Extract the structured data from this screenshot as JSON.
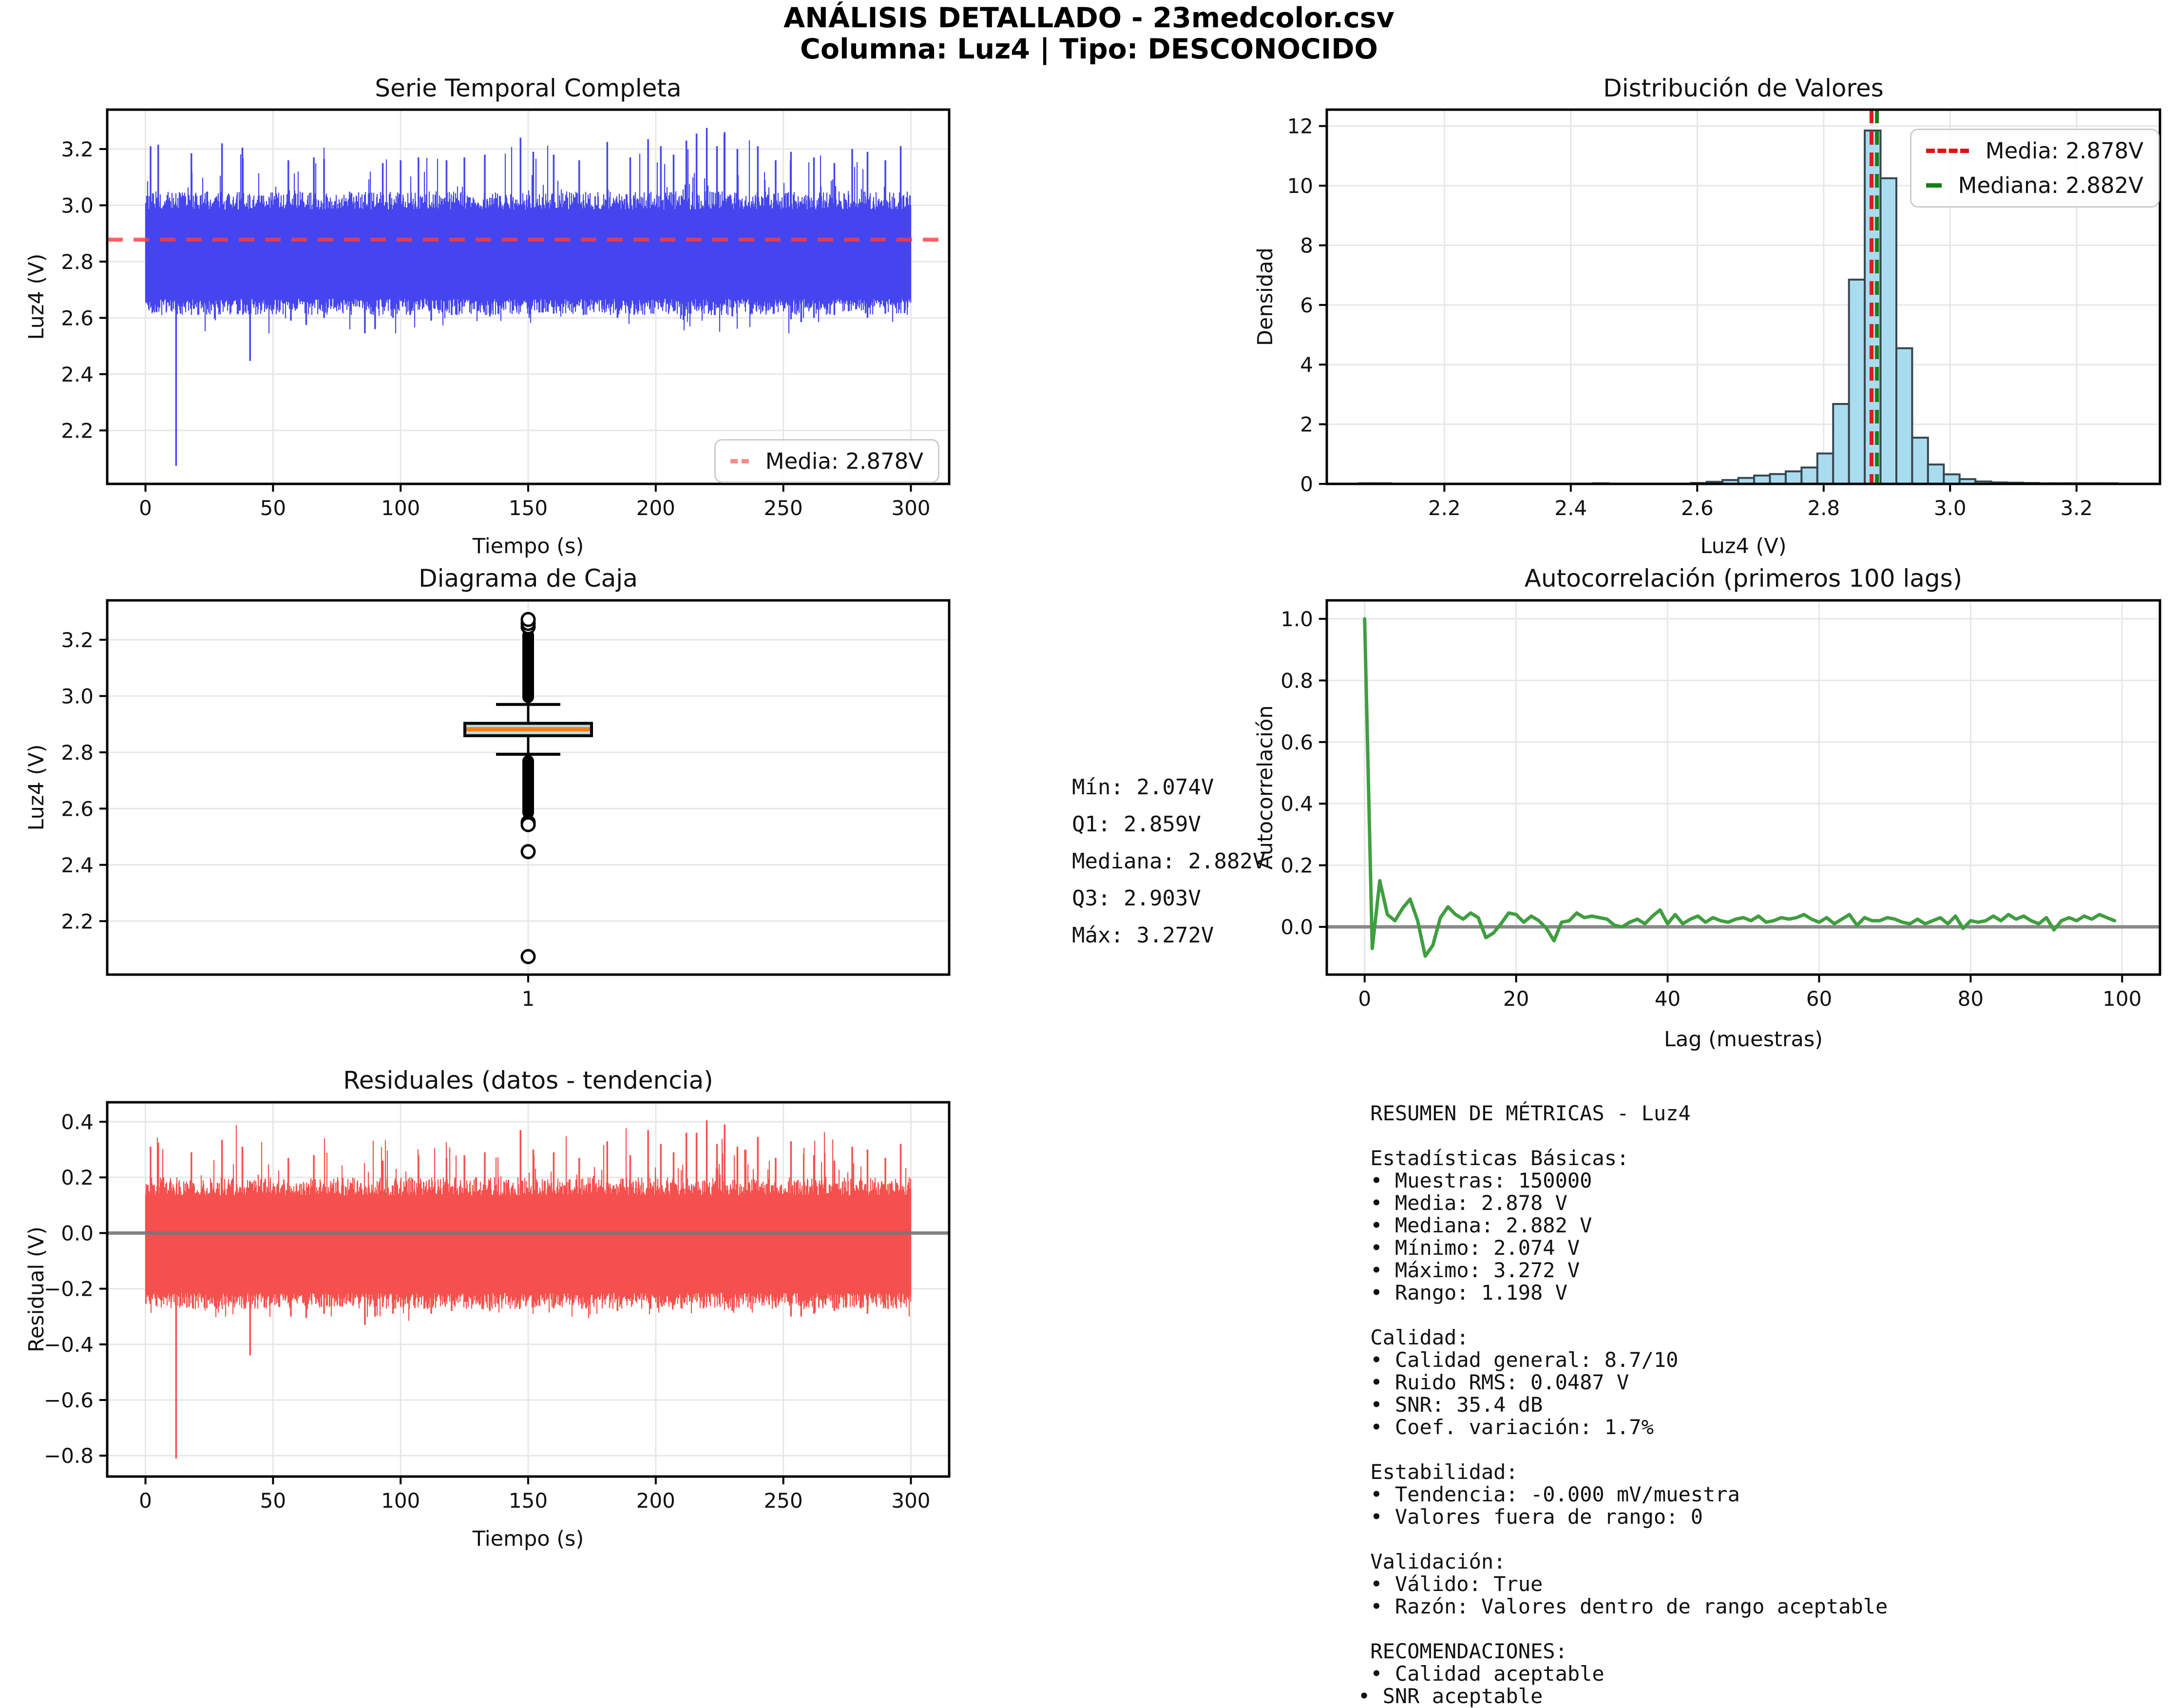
{
  "header": {
    "title": "ANÁLISIS DETALLADO - 23medcolor.csv",
    "subtitle": "Columna: Luz4 | Tipo: DESCONOCIDO"
  },
  "colors": {
    "series_blue": "#4545ef",
    "residual_red": "#f5504d",
    "acf_green": "#3f9e3f",
    "hist_fill": "#aadcf0",
    "hist_edge": "#37474f",
    "mean_red": "#ff3c3c",
    "legend_red": "#dd1414",
    "legend_green": "#157f15",
    "median_orange": "#ff7f0e",
    "box_fill": "#b9dde9",
    "zero_gray": "#777777",
    "grid_gray": "#e7e7e7",
    "spine_black": "#000000"
  },
  "panels": {
    "stats": {
      "text": "Mín: 2.074V\nQ1: 2.859V\nMediana: 2.882V\nQ3: 2.903V\nMáx: 3.272V"
    },
    "metrics": {
      "text": " RESUMEN DE MÉTRICAS - Luz4\n\n Estadísticas Básicas:\n • Muestras: 150000\n • Media: 2.878 V\n • Mediana: 2.882 V\n • Mínimo: 2.074 V\n • Máximo: 3.272 V\n • Rango: 1.198 V\n\n Calidad:\n • Calidad general: 8.7/10\n • Ruido RMS: 0.0487 V\n • SNR: 35.4 dB\n • Coef. variación: 1.7%\n\n Estabilidad:\n • Tendencia: -0.000 mV/muestra\n • Valores fuera de rango: 0\n\n Validación:\n • Válido: True\n • Razón: Valores dentro de rango aceptable\n\n RECOMENDACIONES:\n • Calidad aceptable\n• SNR aceptable"
    }
  },
  "chart_data": [
    {
      "id": "ts",
      "type": "line",
      "title": "Serie Temporal Completa",
      "xlabel": "Tiempo (s)",
      "ylabel": "Luz4 (V)",
      "px": [
        220,
        225,
        1728,
        768
      ],
      "xlim": [
        -15,
        315
      ],
      "ylim": [
        2.01,
        3.34
      ],
      "xticks": [
        0,
        50,
        100,
        150,
        200,
        250,
        300
      ],
      "yticks": [
        2.2,
        2.4,
        2.6,
        2.8,
        3.0,
        3.2
      ],
      "xdec": 0,
      "ydec": 1,
      "seed": 42,
      "band": {
        "top_base": 2.985,
        "bottom_base": 2.668,
        "x_start": 0,
        "x_end": 300
      },
      "mean_line": {
        "y": 2.878,
        "opacity": 0.8
      },
      "high_spikes": [
        [
          2,
          3.21
        ],
        [
          5,
          3.215
        ],
        [
          18,
          3.185
        ],
        [
          30,
          3.22
        ],
        [
          38,
          3.205
        ],
        [
          56,
          3.16
        ],
        [
          66,
          3.17
        ],
        [
          70,
          3.165
        ],
        [
          93,
          3.15
        ],
        [
          100,
          3.16
        ],
        [
          107,
          3.17
        ],
        [
          118,
          3.16
        ],
        [
          125,
          3.17
        ],
        [
          133,
          3.18
        ],
        [
          147,
          3.24
        ],
        [
          152,
          3.19
        ],
        [
          160,
          3.18
        ],
        [
          170,
          3.16
        ],
        [
          181,
          3.225
        ],
        [
          190,
          3.17
        ],
        [
          197,
          3.235
        ],
        [
          202,
          3.21
        ],
        [
          207,
          3.18
        ],
        [
          212,
          3.23
        ],
        [
          216,
          3.255
        ],
        [
          220,
          3.275
        ],
        [
          224,
          3.21
        ],
        [
          227,
          3.26
        ],
        [
          232,
          3.2
        ],
        [
          240,
          3.21
        ],
        [
          247,
          3.16
        ],
        [
          253,
          3.19
        ],
        [
          262,
          3.17
        ],
        [
          270,
          3.15
        ],
        [
          277,
          3.2
        ],
        [
          283,
          3.19
        ],
        [
          290,
          3.16
        ],
        [
          296,
          3.21
        ]
      ],
      "low_spikes": [
        [
          12,
          2.074
        ],
        [
          41,
          2.447
        ],
        [
          57,
          2.59
        ],
        [
          63,
          2.575
        ],
        [
          70,
          2.6
        ],
        [
          86,
          2.545
        ],
        [
          90,
          2.56
        ],
        [
          97,
          2.6
        ],
        [
          112,
          2.59
        ],
        [
          120,
          2.61
        ],
        [
          135,
          2.605
        ],
        [
          160,
          2.615
        ],
        [
          185,
          2.6
        ],
        [
          210,
          2.61
        ],
        [
          230,
          2.605
        ],
        [
          253,
          2.595
        ],
        [
          257,
          2.585
        ],
        [
          262,
          2.6
        ],
        [
          270,
          2.61
        ],
        [
          283,
          2.6
        ],
        [
          290,
          2.615
        ]
      ],
      "legend": {
        "position": "lower right",
        "entries": [
          {
            "label": "Media: 2.878V",
            "color": "#f98b8b"
          }
        ]
      }
    },
    {
      "id": "hist",
      "type": "bar",
      "title": "Distribución de Valores",
      "xlabel": "Luz4 (V)",
      "ylabel": "Densidad",
      "px": [
        2723,
        225,
        1710,
        768
      ],
      "xlim": [
        2.014,
        3.332
      ],
      "ylim": [
        0,
        12.55
      ],
      "xticks": [
        2.2,
        2.4,
        2.6,
        2.8,
        3.0,
        3.2
      ],
      "yticks": [
        0,
        2,
        4,
        6,
        8,
        10,
        12
      ],
      "xdec": 1,
      "ydec": 0,
      "bin_width": 0.025,
      "bin_centers": [
        2.0775,
        2.1025,
        2.4475,
        2.6025,
        2.6275,
        2.6525,
        2.6775,
        2.7025,
        2.7275,
        2.7525,
        2.7775,
        2.8025,
        2.8275,
        2.8525,
        2.8775,
        2.9025,
        2.9275,
        2.9525,
        2.9775,
        3.0025,
        3.0275,
        3.0525,
        3.0775,
        3.1025,
        3.1275,
        3.1525,
        3.1775,
        3.2025,
        3.2275,
        3.2525
      ],
      "densities": [
        0.008,
        0.005,
        0.01,
        0.03,
        0.07,
        0.13,
        0.2,
        0.28,
        0.33,
        0.42,
        0.55,
        1.02,
        2.68,
        6.85,
        11.85,
        10.25,
        4.55,
        1.55,
        0.65,
        0.32,
        0.16,
        0.08,
        0.05,
        0.04,
        0.03,
        0.02,
        0.02,
        0.015,
        0.01,
        0.01
      ],
      "vlines": [
        {
          "x": 2.878,
          "color": "#e01b1b",
          "label": "Media: 2.878V"
        },
        {
          "x": 2.882,
          "color": "#1a7d1a",
          "label": "Mediana: 2.882V"
        }
      ],
      "legend": {
        "position": "upper right",
        "entries": [
          {
            "label": "Media: 2.878V",
            "color": "#dd1414"
          },
          {
            "label": "Mediana: 2.882V",
            "color": "#157f15"
          }
        ]
      }
    },
    {
      "id": "box",
      "type": "boxplot",
      "title": "Diagrama de Caja",
      "xlabel": "",
      "ylabel": "Luz4 (V)",
      "px": [
        220,
        1232,
        1728,
        768
      ],
      "xlim": [
        0,
        2
      ],
      "ylim": [
        2.01,
        3.34
      ],
      "xticks": [
        1
      ],
      "yticks": [
        2.2,
        2.4,
        2.6,
        2.8,
        3.0,
        3.2
      ],
      "xdec": 0,
      "ydec": 1,
      "center": 1,
      "q1": 2.859,
      "median": 2.882,
      "q3": 2.903,
      "whisker_low": 2.793,
      "whisker_high": 2.97,
      "outlier_column_high": [
        2.975,
        3.238
      ],
      "outlier_circles_high": [
        3.246,
        3.258,
        3.272
      ],
      "outlier_column_low": [
        2.565,
        2.79
      ],
      "outlier_circles_low": [
        2.551,
        2.543,
        2.447,
        2.074
      ]
    },
    {
      "id": "acf",
      "type": "line",
      "title": "Autocorrelación (primeros 100 lags)",
      "xlabel": "Lag (muestras)",
      "ylabel": "Autocorrelación",
      "px": [
        2723,
        1232,
        1710,
        768
      ],
      "xlim": [
        -5,
        105
      ],
      "ylim": [
        -0.155,
        1.06
      ],
      "xticks": [
        0,
        20,
        40,
        60,
        80,
        100
      ],
      "yticks": [
        0.0,
        0.2,
        0.4,
        0.6,
        0.8,
        1.0
      ],
      "xdec": 0,
      "ydec": 1,
      "values": [
        1.0,
        -0.07,
        0.15,
        0.04,
        0.02,
        0.06,
        0.09,
        0.02,
        -0.095,
        -0.06,
        0.03,
        0.065,
        0.04,
        0.025,
        0.045,
        0.03,
        -0.035,
        -0.02,
        0.01,
        0.045,
        0.04,
        0.015,
        0.035,
        0.02,
        -0.005,
        -0.045,
        0.015,
        0.02,
        0.045,
        0.03,
        0.035,
        0.03,
        0.025,
        0.005,
        0.0,
        0.015,
        0.025,
        0.01,
        0.035,
        0.055,
        0.01,
        0.04,
        0.01,
        0.025,
        0.035,
        0.015,
        0.03,
        0.02,
        0.015,
        0.025,
        0.03,
        0.02,
        0.035,
        0.015,
        0.02,
        0.03,
        0.025,
        0.03,
        0.04,
        0.025,
        0.015,
        0.03,
        0.01,
        0.025,
        0.04,
        0.005,
        0.03,
        0.02,
        0.02,
        0.03,
        0.025,
        0.015,
        0.01,
        0.025,
        0.01,
        0.02,
        0.03,
        0.01,
        0.035,
        -0.005,
        0.02,
        0.015,
        0.02,
        0.035,
        0.02,
        0.04,
        0.025,
        0.035,
        0.02,
        0.01,
        0.03,
        -0.01,
        0.02,
        0.03,
        0.02,
        0.035,
        0.025,
        0.04,
        0.03,
        0.02
      ]
    },
    {
      "id": "res",
      "type": "line",
      "title": "Residuales (datos - tendencia)",
      "xlabel": "Tiempo (s)",
      "ylabel": "Residual (V)",
      "px": [
        220,
        2262,
        1728,
        768
      ],
      "xlim": [
        -15,
        315
      ],
      "ylim": [
        -0.875,
        0.47
      ],
      "xticks": [
        0,
        50,
        100,
        150,
        200,
        250,
        300
      ],
      "yticks": [
        0.4,
        0.2,
        0.0,
        -0.2,
        -0.4,
        -0.6,
        -0.8
      ],
      "xdec": 0,
      "ydec": 1,
      "seed": 99,
      "band": {
        "top_base": 0.135,
        "bottom_base": -0.215,
        "x_start": 0,
        "x_end": 300
      },
      "high_spikes": [
        [
          2,
          0.31
        ],
        [
          5,
          0.325
        ],
        [
          18,
          0.29
        ],
        [
          30,
          0.335
        ],
        [
          38,
          0.31
        ],
        [
          56,
          0.27
        ],
        [
          66,
          0.28
        ],
        [
          93,
          0.26
        ],
        [
          107,
          0.28
        ],
        [
          118,
          0.27
        ],
        [
          125,
          0.28
        ],
        [
          133,
          0.29
        ],
        [
          147,
          0.37
        ],
        [
          152,
          0.3
        ],
        [
          160,
          0.29
        ],
        [
          170,
          0.27
        ],
        [
          181,
          0.33
        ],
        [
          190,
          0.28
        ],
        [
          197,
          0.37
        ],
        [
          202,
          0.32
        ],
        [
          207,
          0.29
        ],
        [
          212,
          0.36
        ],
        [
          216,
          0.36
        ],
        [
          220,
          0.405
        ],
        [
          224,
          0.32
        ],
        [
          227,
          0.39
        ],
        [
          232,
          0.31
        ],
        [
          235,
          0.3
        ],
        [
          240,
          0.345
        ],
        [
          247,
          0.27
        ],
        [
          253,
          0.33
        ],
        [
          262,
          0.28
        ],
        [
          270,
          0.26
        ],
        [
          277,
          0.31
        ],
        [
          283,
          0.3
        ],
        [
          290,
          0.27
        ],
        [
          296,
          0.32
        ]
      ],
      "low_spikes": [
        [
          12,
          -0.81
        ],
        [
          41,
          -0.44
        ],
        [
          57,
          -0.3
        ],
        [
          63,
          -0.305
        ],
        [
          70,
          -0.29
        ],
        [
          86,
          -0.33
        ],
        [
          90,
          -0.3
        ],
        [
          97,
          -0.29
        ],
        [
          112,
          -0.29
        ],
        [
          120,
          -0.28
        ],
        [
          135,
          -0.28
        ],
        [
          160,
          -0.27
        ],
        [
          185,
          -0.28
        ],
        [
          210,
          -0.27
        ],
        [
          230,
          -0.28
        ],
        [
          253,
          -0.3
        ],
        [
          257,
          -0.3
        ],
        [
          262,
          -0.29
        ],
        [
          270,
          -0.28
        ],
        [
          283,
          -0.29
        ],
        [
          290,
          -0.27
        ]
      ],
      "zero_line": 0
    }
  ]
}
